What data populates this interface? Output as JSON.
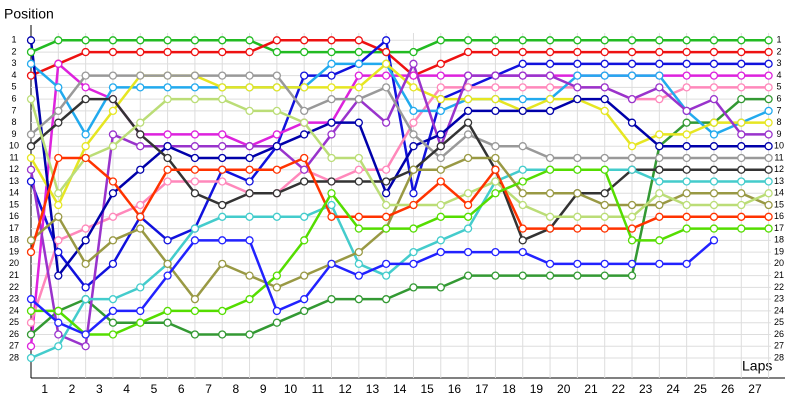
{
  "chart_data": {
    "type": "line",
    "y_label": "Position",
    "x_label": "Laps",
    "x": [
      0,
      1,
      2,
      3,
      4,
      5,
      6,
      7,
      8,
      9,
      10,
      11,
      12,
      13,
      14,
      15,
      16,
      17,
      18,
      19,
      20,
      21,
      22,
      23,
      24,
      25,
      26,
      27
    ],
    "xlim": [
      0,
      27.6
    ],
    "xticks": [
      1,
      2,
      3,
      4,
      5,
      6,
      7,
      8,
      9,
      10,
      11,
      12,
      13,
      14,
      15,
      16,
      17,
      18,
      19,
      20,
      21,
      22,
      23,
      24,
      25,
      26,
      27
    ],
    "ylim": [
      29.7,
      -0.3
    ],
    "yticks": [
      1,
      2,
      3,
      4,
      5,
      6,
      7,
      8,
      9,
      10,
      11,
      12,
      13,
      14,
      15,
      16,
      17,
      18,
      19,
      20,
      21,
      22,
      23,
      24,
      25,
      26,
      27,
      28
    ],
    "grid": true,
    "series": [
      {
        "color": "#22bb22",
        "values": [
          2,
          1,
          1,
          1,
          1,
          1,
          1,
          1,
          1,
          2,
          2,
          2,
          2,
          2,
          2,
          1,
          1,
          1,
          1,
          1,
          1,
          1,
          1,
          1,
          1,
          1,
          1,
          1
        ]
      },
      {
        "color": "#ee1111",
        "values": [
          4,
          3,
          2,
          2,
          2,
          2,
          2,
          2,
          2,
          1,
          1,
          1,
          1,
          2,
          4,
          3,
          2,
          2,
          2,
          2,
          2,
          2,
          2,
          2,
          2,
          2,
          2,
          2
        ]
      },
      {
        "color": "#1111dd",
        "values": [
          13,
          19,
          22,
          20,
          16,
          18,
          17,
          12,
          13,
          10,
          4,
          4,
          3,
          1,
          14,
          6,
          5,
          4,
          3,
          3,
          3,
          3,
          3,
          3,
          3,
          3,
          3,
          3
        ]
      },
      {
        "color": "#dd22dd",
        "values": [
          27,
          3,
          5,
          6,
          9,
          9,
          9,
          9,
          10,
          9,
          8,
          8,
          4,
          4,
          4,
          4,
          4,
          4,
          4,
          4,
          4,
          4,
          4,
          4,
          4,
          4,
          4,
          4
        ]
      },
      {
        "color": "#ff88bb",
        "values": [
          25,
          18,
          17,
          16,
          15,
          13,
          13,
          13,
          14,
          14,
          12,
          13,
          12,
          12,
          8,
          5,
          5,
          5,
          5,
          5,
          5,
          5,
          6,
          6,
          5,
          5,
          5,
          5
        ]
      },
      {
        "color": "#339933",
        "values": [
          26,
          24,
          23,
          25,
          25,
          25,
          26,
          26,
          26,
          25,
          24,
          23,
          23,
          23,
          22,
          22,
          21,
          21,
          21,
          21,
          21,
          21,
          21,
          10,
          8,
          8,
          6,
          6
        ]
      },
      {
        "color": "#22aaee",
        "values": [
          3,
          5,
          9,
          5,
          5,
          5,
          5,
          5,
          5,
          5,
          5,
          3,
          3,
          3,
          7,
          7,
          6,
          6,
          6,
          6,
          4,
          4,
          4,
          4,
          7,
          9,
          8,
          7
        ]
      },
      {
        "color": "#e6e622",
        "values": [
          11,
          15,
          10,
          7,
          4,
          4,
          4,
          5,
          5,
          5,
          5,
          5,
          5,
          3,
          5,
          6,
          6,
          6,
          7,
          6,
          6,
          7,
          10,
          9,
          9,
          8,
          8,
          8
        ]
      },
      {
        "color": "#9933cc",
        "values": [
          12,
          26,
          27,
          9,
          10,
          10,
          10,
          10,
          10,
          10,
          12,
          9,
          6,
          8,
          3,
          10,
          4,
          4,
          4,
          4,
          5,
          5,
          6,
          5,
          7,
          6,
          9,
          9
        ]
      },
      {
        "color": "#0000aa",
        "values": [
          1,
          21,
          18,
          14,
          12,
          10,
          11,
          11,
          11,
          10,
          9,
          8,
          8,
          14,
          10,
          9,
          7,
          7,
          7,
          7,
          6,
          6,
          8,
          10,
          10,
          10,
          10,
          10
        ]
      },
      {
        "color": "#999999",
        "values": [
          9,
          7,
          4,
          4,
          4,
          4,
          4,
          4,
          4,
          4,
          7,
          6,
          6,
          5,
          9,
          11,
          9,
          10,
          10,
          11,
          11,
          11,
          11,
          11,
          11,
          11,
          11,
          11
        ]
      },
      {
        "color": "#333333",
        "values": [
          10,
          8,
          6,
          6,
          9,
          11,
          14,
          15,
          14,
          14,
          13,
          13,
          13,
          13,
          12,
          10,
          8,
          12,
          18,
          17,
          14,
          14,
          12,
          12,
          12,
          12,
          12,
          12
        ]
      },
      {
        "color": "#44cccc",
        "values": [
          28,
          27,
          23,
          23,
          22,
          20,
          17,
          16,
          16,
          16,
          16,
          15,
          20,
          21,
          19,
          18,
          17,
          13,
          12,
          12,
          12,
          12,
          12,
          13,
          13,
          13,
          13,
          13
        ]
      },
      {
        "color": "#999944",
        "values": [
          18,
          16,
          20,
          18,
          17,
          20,
          23,
          20,
          21,
          22,
          21,
          20,
          19,
          17,
          12,
          12,
          11,
          11,
          14,
          14,
          14,
          15,
          15,
          15,
          14,
          14,
          14,
          15
        ]
      },
      {
        "color": "#bbdd77",
        "values": [
          6,
          14,
          11,
          10,
          8,
          6,
          6,
          6,
          7,
          7,
          8,
          11,
          11,
          15,
          15,
          15,
          14,
          13,
          15,
          16,
          16,
          16,
          16,
          14,
          15,
          15,
          15,
          14
        ]
      },
      {
        "color": "#ff3300",
        "values": [
          19,
          11,
          11,
          13,
          16,
          12,
          12,
          12,
          12,
          12,
          11,
          16,
          16,
          16,
          15,
          13,
          15,
          12,
          17,
          17,
          17,
          17,
          17,
          16,
          16,
          16,
          16,
          16
        ]
      },
      {
        "color": "#55dd00",
        "values": [
          24,
          24,
          26,
          26,
          25,
          24,
          24,
          24,
          23,
          21,
          18,
          14,
          17,
          17,
          17,
          16,
          16,
          14,
          13,
          12,
          12,
          12,
          18,
          18,
          17,
          17,
          17,
          17
        ]
      },
      {
        "color": "#2222ff",
        "values": [
          23,
          25,
          26,
          24,
          24,
          21,
          18,
          18,
          18,
          24,
          23,
          20,
          21,
          20,
          20,
          19,
          19,
          19,
          19,
          20,
          20,
          20,
          20,
          20,
          20,
          18,
          null,
          null
        ]
      }
    ]
  }
}
